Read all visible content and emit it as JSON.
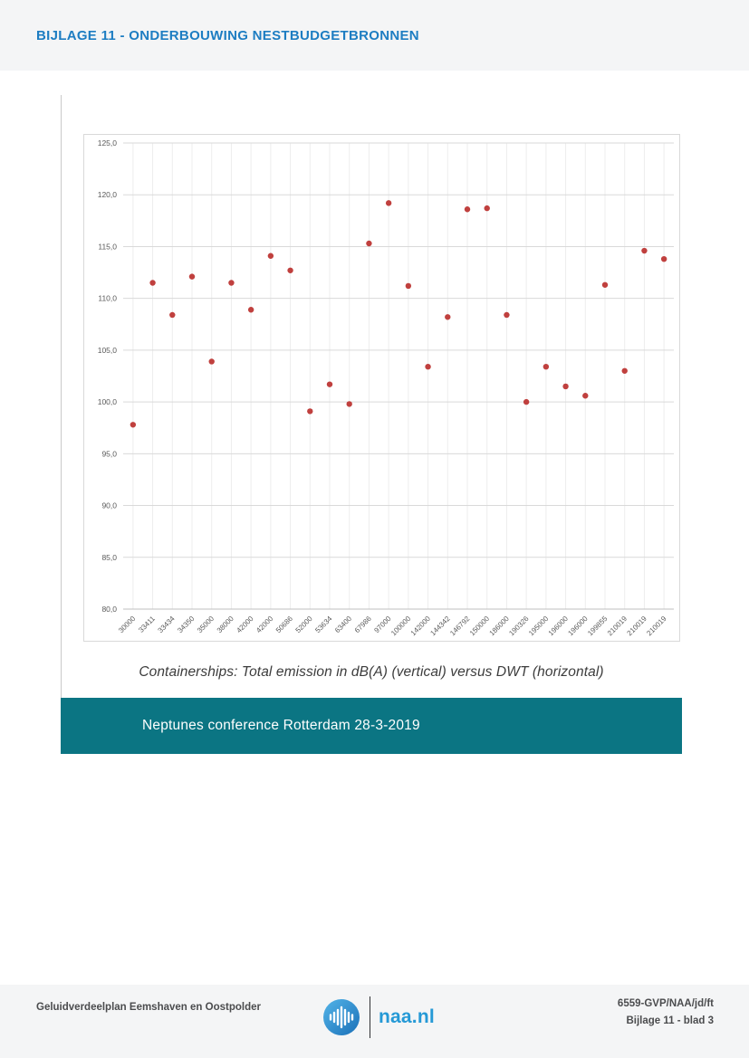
{
  "page": {
    "header": {
      "title": "BIJLAGE 11 - ONDERBOUWING NESTBUDGETBRONNEN"
    },
    "figure": {
      "caption": "Containerships: Total emission in dB(A) (vertical) versus DWT (horizontal)",
      "banner_text": "Neptunes conference Rotterdam 28-3-2019"
    },
    "footer": {
      "left_text": "Geluidverdeelplan Eemshaven en Oostpolder",
      "logo_text": "naa.nl",
      "logo_icon": "sound-wave-circle-icon",
      "right_line1": "6559-GVP/NAA/jd/ft",
      "right_line2": "Bijlage 11 - blad 3"
    }
  },
  "colors": {
    "header_blue": "#1d7dc2",
    "banner_teal": "#0b7583",
    "point_red": "#c0403e",
    "naa_blue": "#2599d6",
    "band_gray": "#f4f5f6",
    "gridline": "#d9d9d9",
    "axis_text": "#595959"
  },
  "chart_data": {
    "type": "scatter",
    "title": "",
    "xlabel": "",
    "ylabel": "",
    "categories": [
      "30000",
      "33411",
      "33434",
      "34350",
      "35000",
      "38000",
      "42000",
      "42000",
      "50686",
      "52000",
      "53634",
      "63400",
      "67986",
      "97000",
      "100000",
      "142000",
      "144342",
      "146792",
      "150000",
      "186000",
      "190326",
      "195000",
      "196000",
      "196000",
      "199855",
      "210019",
      "210019",
      "210019"
    ],
    "values": [
      97.8,
      111.5,
      108.4,
      112.1,
      103.9,
      111.5,
      108.9,
      114.1,
      112.7,
      99.1,
      101.7,
      99.8,
      115.3,
      119.2,
      111.2,
      103.4,
      108.2,
      118.6,
      118.7,
      108.4,
      100.0,
      103.4,
      101.5,
      100.6,
      111.3,
      103.0,
      114.6,
      113.8
    ],
    "ylim": [
      80,
      125
    ],
    "ytick_step": 5,
    "ytick_labels": [
      "125,0",
      "120,0",
      "115,0",
      "110,0",
      "105,0",
      "100,0",
      "95,0",
      "90,0",
      "85,0",
      "80,0"
    ],
    "grid": true,
    "legend_position": "none",
    "point_color": "#c0403e"
  }
}
